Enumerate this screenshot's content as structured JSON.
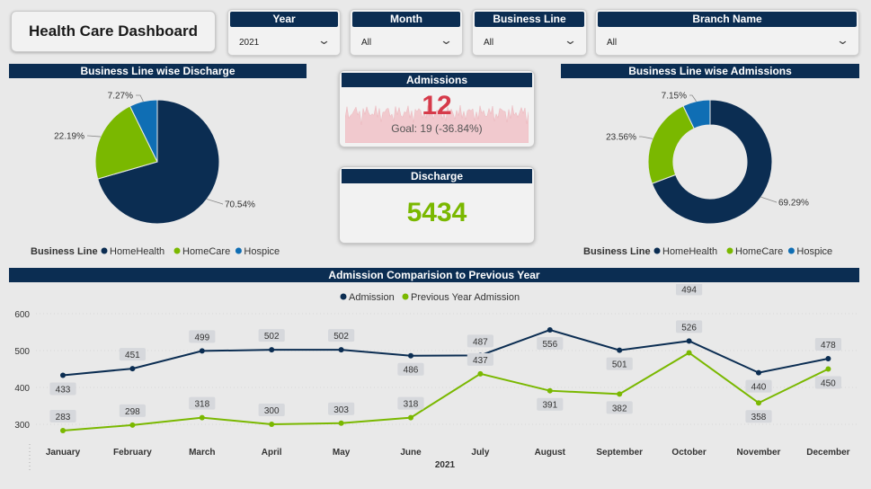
{
  "title": "Health Care Dashboard",
  "slicers": [
    {
      "label": "Year",
      "value": "2021"
    },
    {
      "label": "Month",
      "value": "All"
    },
    {
      "label": "Business Line",
      "value": "All"
    },
    {
      "label": "Branch Name",
      "value": "All"
    }
  ],
  "kpi": {
    "admissions_title": "Admissions",
    "admissions_value": "12",
    "admissions_goal": "Goal: 19 (-36.84%)",
    "discharge_title": "Discharge",
    "discharge_value": "5434"
  },
  "colors": {
    "navy": "#0b2d52",
    "green": "#7ab800",
    "blue": "#0f6eb4",
    "red": "#d63a4a"
  },
  "chart_data": [
    {
      "type": "pie",
      "title": "Business Line wise Discharge",
      "legend_title": "Business Line",
      "categories": [
        "HomeHealth",
        "HomeCare",
        "Hospice"
      ],
      "values": [
        70.54,
        22.19,
        7.27
      ],
      "labels": [
        "70.54%",
        "22.19%",
        "7.27%"
      ]
    },
    {
      "type": "pie",
      "title": "Business Line wise Admissions",
      "legend_title": "Business Line",
      "categories": [
        "HomeHealth",
        "HomeCare",
        "Hospice"
      ],
      "values": [
        69.29,
        23.56,
        7.15
      ],
      "labels": [
        "69.29%",
        "23.56%",
        "7.15%"
      ]
    },
    {
      "type": "line",
      "title": "Admission Comparision to Previous Year",
      "categories": [
        "January",
        "February",
        "March",
        "April",
        "May",
        "June",
        "July",
        "August",
        "September",
        "October",
        "November",
        "December"
      ],
      "series": [
        {
          "name": "Admission",
          "values": [
            433,
            451,
            499,
            502,
            502,
            486,
            487,
            556,
            501,
            526,
            440,
            478
          ]
        },
        {
          "name": "Previous Year Admission",
          "values": [
            283,
            298,
            318,
            300,
            303,
            318,
            437,
            391,
            382,
            494,
            358,
            450
          ]
        }
      ],
      "xlabel": "2021",
      "ylabel": "",
      "yticks": [
        "300",
        "400",
        "500",
        "600"
      ],
      "ylim": [
        300,
        600
      ],
      "extra_label": "494"
    }
  ]
}
